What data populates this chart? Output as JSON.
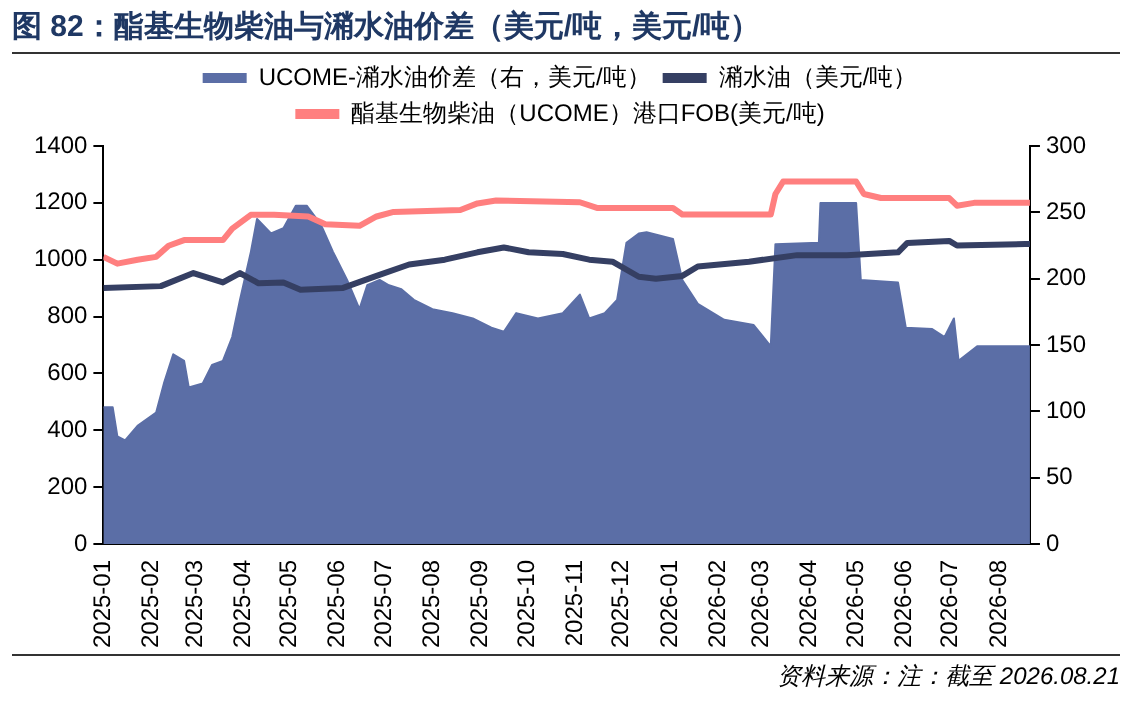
{
  "chart_data": {
    "type": "line",
    "title": "图 82：酯基生物柴油与潲水油价差（美元/吨，美元/吨）",
    "annotations": [
      "资料来源：注：截至 2026.08.21"
    ],
    "legend": "top",
    "grid": false,
    "marker": "none",
    "line_style": "solid",
    "xlim": [
      "2025-01-01",
      "2026-08-21"
    ],
    "xticks": [
      "2025-01",
      "2025-02",
      "2025-03",
      "2025-04",
      "2025-05",
      "2025-06",
      "2025-07",
      "2025-08",
      "2025-09",
      "2025-10",
      "2025-11",
      "2025-12",
      "2026-01",
      "2026-02",
      "2026-03",
      "2026-04",
      "2026-05",
      "2026-06",
      "2026-07",
      "2026-08"
    ],
    "ylim": [
      0,
      1400
    ],
    "yticks": [
      0,
      200,
      400,
      600,
      800,
      1000,
      1200,
      1400
    ],
    "y2lim": [
      0,
      300
    ],
    "y2ticks": [
      0,
      50,
      100,
      150,
      200,
      250,
      300
    ],
    "series": [
      {
        "name": "UCOME-潲水油价差（右，美元/吨）",
        "type": "area",
        "axis": "y2",
        "color": "#5b6ea6",
        "x": [
          "2025-01-01",
          "2025-01-07",
          "2025-01-10",
          "2025-01-15",
          "2025-01-23",
          "2025-02-04",
          "2025-02-09",
          "2025-02-15",
          "2025-02-22",
          "2025-02-25",
          "2025-03-06",
          "2025-03-12",
          "2025-03-19",
          "2025-03-25",
          "2025-03-30",
          "2025-04-06",
          "2025-04-10",
          "2025-04-19",
          "2025-04-27",
          "2025-05-05",
          "2025-05-12",
          "2025-05-21",
          "2025-05-29",
          "2025-06-07",
          "2025-06-15",
          "2025-06-20",
          "2025-06-28",
          "2025-07-04",
          "2025-07-12",
          "2025-07-20",
          "2025-08-01",
          "2025-08-14",
          "2025-08-27",
          "2025-09-08",
          "2025-09-16",
          "2025-09-24",
          "2025-10-08",
          "2025-10-24",
          "2025-11-04",
          "2025-11-10",
          "2025-11-20",
          "2025-11-28",
          "2025-12-04",
          "2025-12-12",
          "2025-12-17",
          "2026-01-03",
          "2026-01-09",
          "2026-01-19",
          "2026-02-05",
          "2026-02-24",
          "2026-03-07",
          "2026-03-10",
          "2026-04-07",
          "2026-04-08",
          "2026-05-01",
          "2026-05-04",
          "2026-05-28",
          "2026-06-02",
          "2026-06-19",
          "2026-06-27",
          "2026-07-03",
          "2026-07-06",
          "2026-07-18",
          "2026-08-18",
          "2026-08-21"
        ],
        "values": [
          103,
          103,
          81,
          78,
          89,
          99,
          121,
          143,
          138,
          118,
          121,
          135,
          138,
          156,
          184,
          220,
          245,
          234,
          238,
          255,
          255,
          241,
          220,
          199,
          177,
          195,
          199,
          195,
          192,
          184,
          177,
          174,
          170,
          163,
          160,
          174,
          170,
          174,
          188,
          170,
          174,
          184,
          227,
          234,
          235,
          230,
          199,
          181,
          169,
          165,
          149,
          226,
          227,
          257,
          257,
          199,
          197,
          163,
          162,
          156,
          170,
          138,
          149,
          149,
          149
        ]
      },
      {
        "name": "潲水油（美元/吨）",
        "color": "#353f63",
        "x": [
          "2025-01-01",
          "2025-02-07",
          "2025-02-28",
          "2025-03-19",
          "2025-03-30",
          "2025-04-11",
          "2025-04-27",
          "2025-05-08",
          "2025-06-04",
          "2025-06-26",
          "2025-07-17",
          "2025-08-09",
          "2025-08-30",
          "2025-09-16",
          "2025-10-02",
          "2025-10-24",
          "2025-11-10",
          "2025-11-25",
          "2025-12-12",
          "2025-12-23",
          "2026-01-09",
          "2026-01-19",
          "2026-02-21",
          "2026-03-24",
          "2026-04-25",
          "2026-05-28",
          "2026-06-03",
          "2026-06-30",
          "2026-07-05",
          "2026-08-18",
          "2026-08-21"
        ],
        "values": [
          900,
          907,
          953,
          920,
          953,
          917,
          920,
          894,
          900,
          943,
          983,
          1000,
          1026,
          1043,
          1026,
          1020,
          1000,
          993,
          940,
          933,
          943,
          976,
          993,
          1016,
          1016,
          1026,
          1059,
          1066,
          1050,
          1055,
          1055
        ]
      },
      {
        "name": "酯基生物柴油（UCOME）港口FOB(美元/吨)",
        "color": "#ff7f7f",
        "x": [
          "2025-01-01",
          "2025-01-10",
          "2025-01-23",
          "2025-02-04",
          "2025-02-12",
          "2025-02-22",
          "2025-03-19",
          "2025-03-25",
          "2025-04-06",
          "2025-04-21",
          "2025-05-13",
          "2025-05-24",
          "2025-06-15",
          "2025-06-26",
          "2025-07-07",
          "2025-08-19",
          "2025-08-30",
          "2025-09-11",
          "2025-11-04",
          "2025-11-15",
          "2026-01-03",
          "2026-01-09",
          "2026-03-07",
          "2026-03-10",
          "2026-03-15",
          "2026-05-01",
          "2026-05-06",
          "2026-05-17",
          "2026-06-30",
          "2026-07-05",
          "2026-07-16",
          "2026-08-21"
        ],
        "values": [
          1010,
          986,
          1000,
          1010,
          1049,
          1069,
          1069,
          1109,
          1158,
          1158,
          1152,
          1125,
          1119,
          1152,
          1168,
          1175,
          1198,
          1208,
          1202,
          1182,
          1182,
          1159,
          1159,
          1231,
          1275,
          1275,
          1231,
          1217,
          1217,
          1190,
          1200,
          1200
        ]
      }
    ]
  }
}
